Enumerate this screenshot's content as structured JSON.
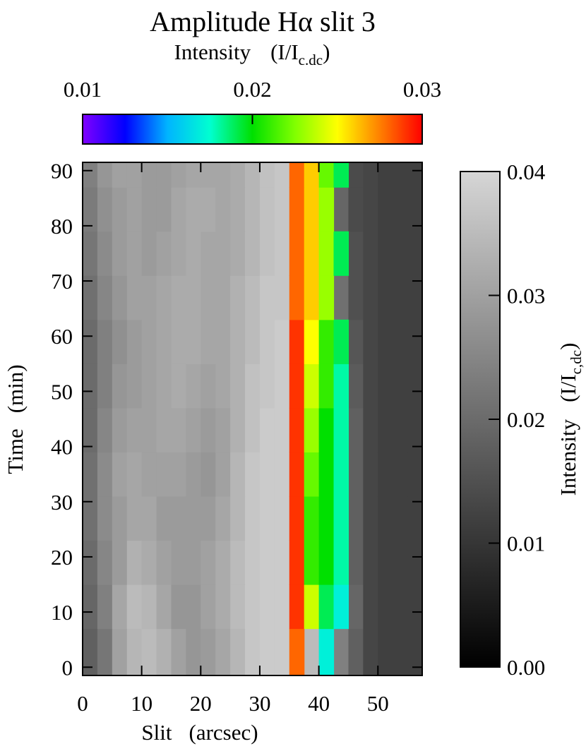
{
  "chart_data": {
    "type": "heatmap",
    "title": "Amplitude Hα slit 3",
    "x_label": "Slit",
    "x_unit": "(arcsec)",
    "y_label": "Time",
    "y_unit": "(min)",
    "xlim": [
      0,
      57.5
    ],
    "ylim": [
      -1.5,
      91.5
    ],
    "xticks": [
      0,
      10,
      20,
      30,
      40,
      50
    ],
    "yticks": [
      0,
      10,
      20,
      30,
      40,
      50,
      60,
      70,
      80,
      90
    ],
    "x_edges": [
      0,
      2.5,
      5,
      7.5,
      10,
      12.5,
      15,
      17.5,
      20,
      22.5,
      25,
      27.5,
      30,
      32.5,
      35,
      37.5,
      40,
      42.5,
      45,
      47.5,
      50,
      52.5,
      55,
      57.5
    ],
    "y_edges": [
      -1.5,
      7,
      15,
      23,
      31,
      39,
      47,
      55,
      63,
      71,
      79,
      87,
      91.5
    ],
    "z": [
      [
        0.018,
        0.022,
        0.03,
        0.034,
        0.035,
        0.033,
        0.03,
        0.028,
        0.029,
        0.031,
        0.034,
        0.037,
        0.038,
        0.038,
        0.037,
        0.035,
        0.03,
        0.024,
        0.018,
        0.013,
        0.012,
        0.012,
        0.012
      ],
      [
        0.019,
        0.024,
        0.031,
        0.035,
        0.034,
        0.031,
        0.028,
        0.028,
        0.03,
        0.032,
        0.035,
        0.037,
        0.038,
        0.038,
        0.037,
        0.036,
        0.031,
        0.025,
        0.019,
        0.013,
        0.012,
        0.012,
        0.012
      ],
      [
        0.02,
        0.025,
        0.029,
        0.033,
        0.032,
        0.03,
        0.029,
        0.029,
        0.03,
        0.032,
        0.035,
        0.037,
        0.038,
        0.038,
        0.037,
        0.036,
        0.031,
        0.025,
        0.018,
        0.013,
        0.012,
        0.012,
        0.012
      ],
      [
        0.021,
        0.026,
        0.029,
        0.031,
        0.031,
        0.029,
        0.029,
        0.029,
        0.029,
        0.031,
        0.034,
        0.037,
        0.038,
        0.038,
        0.037,
        0.036,
        0.031,
        0.024,
        0.018,
        0.013,
        0.012,
        0.012,
        0.012
      ],
      [
        0.021,
        0.026,
        0.03,
        0.031,
        0.03,
        0.03,
        0.03,
        0.029,
        0.028,
        0.03,
        0.034,
        0.037,
        0.038,
        0.038,
        0.037,
        0.036,
        0.03,
        0.024,
        0.018,
        0.013,
        0.012,
        0.012,
        0.012
      ],
      [
        0.02,
        0.025,
        0.029,
        0.03,
        0.03,
        0.031,
        0.031,
        0.03,
        0.029,
        0.03,
        0.033,
        0.036,
        0.038,
        0.038,
        0.037,
        0.036,
        0.03,
        0.024,
        0.018,
        0.013,
        0.012,
        0.012,
        0.012
      ],
      [
        0.02,
        0.024,
        0.028,
        0.029,
        0.03,
        0.031,
        0.032,
        0.031,
        0.03,
        0.031,
        0.033,
        0.036,
        0.037,
        0.038,
        0.037,
        0.036,
        0.03,
        0.023,
        0.017,
        0.013,
        0.012,
        0.012,
        0.012
      ],
      [
        0.02,
        0.024,
        0.027,
        0.029,
        0.03,
        0.031,
        0.032,
        0.032,
        0.031,
        0.031,
        0.033,
        0.035,
        0.037,
        0.038,
        0.037,
        0.035,
        0.029,
        0.022,
        0.016,
        0.013,
        0.012,
        0.012,
        0.012
      ],
      [
        0.021,
        0.025,
        0.028,
        0.03,
        0.03,
        0.031,
        0.032,
        0.032,
        0.031,
        0.031,
        0.033,
        0.035,
        0.037,
        0.037,
        0.037,
        0.035,
        0.028,
        0.021,
        0.015,
        0.013,
        0.012,
        0.012,
        0.012
      ],
      [
        0.022,
        0.026,
        0.029,
        0.03,
        0.029,
        0.03,
        0.031,
        0.032,
        0.031,
        0.031,
        0.032,
        0.034,
        0.036,
        0.037,
        0.036,
        0.034,
        0.027,
        0.02,
        0.015,
        0.013,
        0.012,
        0.012,
        0.012
      ],
      [
        0.023,
        0.027,
        0.029,
        0.03,
        0.029,
        0.029,
        0.031,
        0.032,
        0.032,
        0.031,
        0.032,
        0.034,
        0.036,
        0.037,
        0.036,
        0.034,
        0.026,
        0.019,
        0.014,
        0.013,
        0.012,
        0.012,
        0.012
      ],
      [
        0.024,
        0.028,
        0.03,
        0.03,
        0.029,
        0.029,
        0.03,
        0.031,
        0.031,
        0.031,
        0.032,
        0.034,
        0.036,
        0.037,
        0.036,
        0.034,
        0.026,
        0.019,
        0.014,
        0.013,
        0.012,
        0.012,
        0.012
      ]
    ],
    "overlay": [
      [
        null,
        null,
        null,
        null,
        null,
        null,
        null,
        null,
        null,
        null,
        null,
        null,
        null,
        null,
        0.028,
        null,
        0.017,
        null,
        null,
        null,
        null,
        null,
        null
      ],
      [
        null,
        null,
        null,
        null,
        null,
        null,
        null,
        null,
        null,
        null,
        null,
        null,
        null,
        null,
        0.029,
        0.024,
        0.019,
        0.017,
        null,
        null,
        null,
        null,
        null
      ],
      [
        null,
        null,
        null,
        null,
        null,
        null,
        null,
        null,
        null,
        null,
        null,
        null,
        null,
        null,
        0.029,
        0.021,
        0.02,
        0.018,
        null,
        null,
        null,
        null,
        null
      ],
      [
        null,
        null,
        null,
        null,
        null,
        null,
        null,
        null,
        null,
        null,
        null,
        null,
        null,
        null,
        0.029,
        0.021,
        0.02,
        0.018,
        null,
        null,
        null,
        null,
        null
      ],
      [
        null,
        null,
        null,
        null,
        null,
        null,
        null,
        null,
        null,
        null,
        null,
        null,
        null,
        null,
        0.029,
        0.022,
        0.02,
        0.018,
        null,
        null,
        null,
        null,
        null
      ],
      [
        null,
        null,
        null,
        null,
        null,
        null,
        null,
        null,
        null,
        null,
        null,
        null,
        null,
        null,
        0.029,
        0.023,
        0.02,
        0.018,
        null,
        null,
        null,
        null,
        null
      ],
      [
        null,
        null,
        null,
        null,
        null,
        null,
        null,
        null,
        null,
        null,
        null,
        null,
        null,
        null,
        0.029,
        0.024,
        0.021,
        0.018,
        null,
        null,
        null,
        null,
        null
      ],
      [
        null,
        null,
        null,
        null,
        null,
        null,
        null,
        null,
        null,
        null,
        null,
        null,
        null,
        null,
        0.029,
        0.025,
        0.021,
        0.019,
        null,
        null,
        null,
        null,
        null
      ],
      [
        null,
        null,
        null,
        null,
        null,
        null,
        null,
        null,
        null,
        null,
        null,
        null,
        null,
        null,
        0.028,
        0.026,
        0.023,
        null,
        null,
        null,
        null,
        null,
        null
      ],
      [
        null,
        null,
        null,
        null,
        null,
        null,
        null,
        null,
        null,
        null,
        null,
        null,
        null,
        null,
        0.028,
        0.026,
        0.023,
        0.019,
        null,
        null,
        null,
        null,
        null
      ],
      [
        null,
        null,
        null,
        null,
        null,
        null,
        null,
        null,
        null,
        null,
        null,
        null,
        null,
        null,
        0.028,
        0.026,
        0.023,
        null,
        null,
        null,
        null,
        null,
        null
      ],
      [
        null,
        null,
        null,
        null,
        null,
        null,
        null,
        null,
        null,
        null,
        null,
        null,
        null,
        null,
        0.028,
        0.026,
        0.022,
        0.019,
        null,
        null,
        null,
        null,
        null
      ]
    ],
    "colorbar_top": {
      "label": "Intensity",
      "unit_prefix": "(I/I",
      "unit_sub": "c.dc",
      "unit_suffix": ")",
      "lim": [
        0.01,
        0.03
      ],
      "ticks": [
        0.01,
        0.02,
        0.03
      ],
      "colors": [
        "#8000ff",
        "#0000ff",
        "#00b4ff",
        "#00ffd0",
        "#00e000",
        "#80ff00",
        "#ffff00",
        "#ff8000",
        "#ff0000"
      ]
    },
    "colorbar_right": {
      "label": "Intensity",
      "unit_prefix": "(I/I",
      "unit_sub": "c,dc",
      "unit_suffix": ")",
      "lim": [
        0,
        0.04
      ],
      "ticks": [
        {
          "value": 0,
          "label": "0.00"
        },
        0.01,
        0.02,
        0.03,
        0.04
      ],
      "colors": [
        "#000000",
        "#d6d6d6"
      ]
    }
  }
}
